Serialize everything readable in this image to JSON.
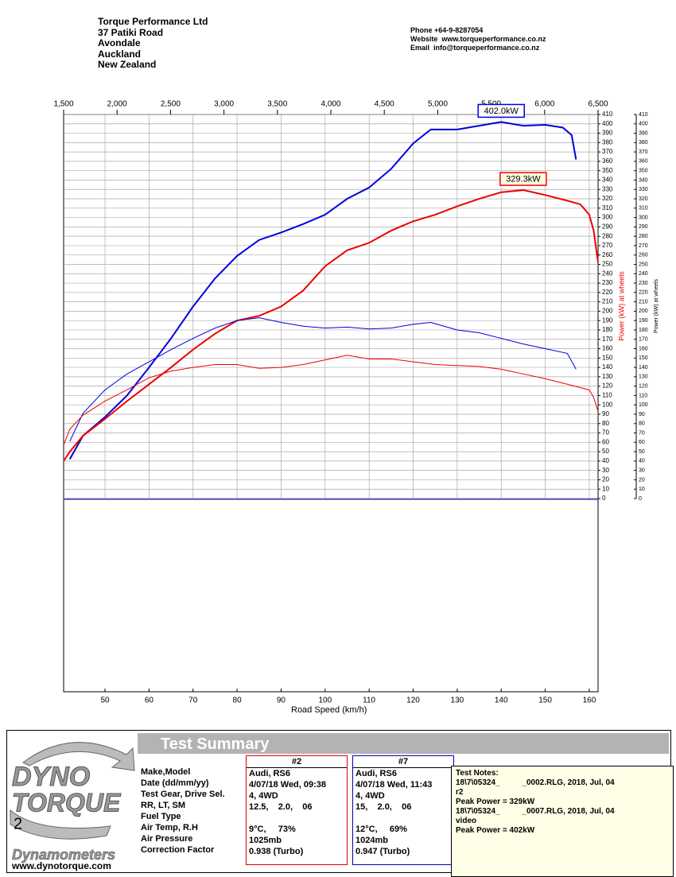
{
  "header": {
    "address": [
      "Torque Performance Ltd",
      "37 Patiki Road",
      "Avondale",
      "Auckland",
      "New Zealand"
    ],
    "contact": [
      "Phone +64-9-8287054",
      "Website  www.torqueperformance.co.nz",
      "Email  info@torqueperformance.co.nz"
    ]
  },
  "chart_data": {
    "type": "line",
    "xlabel": "Road Speed (km/h)",
    "ylabel": "Power (kW) at wheels",
    "y2label": "Power (kW) at wheels",
    "xlim": [
      40.6,
      162
    ],
    "xticks": [
      50,
      60,
      70,
      80,
      90,
      100,
      110,
      120,
      130,
      140,
      150,
      160
    ],
    "x2lim": [
      1500,
      6500
    ],
    "x2ticks": [
      {
        "value": 1500,
        "label": "1,500"
      },
      {
        "value": 2000,
        "label": "2,000"
      },
      {
        "value": 2500,
        "label": "2,500"
      },
      {
        "value": 3000,
        "label": "3,000"
      },
      {
        "value": 3500,
        "label": "3,500"
      },
      {
        "value": 4000,
        "label": "4,000"
      },
      {
        "value": 4500,
        "label": "4,500"
      },
      {
        "value": 5000,
        "label": "5,000"
      },
      {
        "value": 5500,
        "label": "5,500"
      },
      {
        "value": 6000,
        "label": "6,000"
      },
      {
        "value": 6500,
        "label": "6,500"
      }
    ],
    "ylim": [
      0,
      410
    ],
    "yticks": [
      0,
      10,
      20,
      30,
      40,
      50,
      60,
      70,
      80,
      90,
      100,
      110,
      120,
      130,
      140,
      150,
      160,
      170,
      180,
      190,
      200,
      210,
      220,
      230,
      240,
      250,
      260,
      270,
      280,
      290,
      300,
      310,
      320,
      330,
      340,
      350,
      360,
      370,
      380,
      390,
      400,
      410
    ],
    "y2lim": [
      0,
      410
    ],
    "y2ticks": [
      0,
      10,
      20,
      30,
      40,
      50,
      60,
      70,
      80,
      90,
      100,
      110,
      120,
      130,
      140,
      150,
      160,
      170,
      180,
      190,
      200,
      210,
      220,
      230,
      240,
      250,
      260,
      270,
      280,
      290,
      300,
      310,
      320,
      330,
      340,
      350,
      360,
      370,
      380,
      390,
      400,
      410
    ],
    "grid": true,
    "series": [
      {
        "color": "#0000dd",
        "width": 2,
        "peak_label": "402.0kW",
        "peak_fill": "#ffffff",
        "x": [
          42,
          45,
          50,
          55,
          60,
          65,
          70,
          75,
          80,
          85,
          90,
          95,
          100,
          105,
          110,
          115,
          120,
          124,
          130,
          135,
          140,
          145,
          150,
          154,
          156,
          157
        ],
        "values": [
          42,
          67,
          87,
          110,
          140,
          171,
          205,
          235,
          259,
          276,
          284,
          293,
          303,
          320,
          332,
          352,
          379,
          394,
          394,
          398,
          402,
          398,
          399,
          396,
          388,
          362
        ]
      },
      {
        "color": "#ee0000",
        "width": 2,
        "peak_label": "329.3kW",
        "peak_fill": "#ffffe0",
        "x": [
          40.6,
          42,
          45,
          50,
          55,
          60,
          65,
          70,
          75,
          80,
          85,
          90,
          95,
          100,
          105,
          110,
          115,
          120,
          125,
          130,
          135,
          140,
          145,
          150,
          155,
          158,
          160,
          161,
          162
        ],
        "values": [
          40,
          50,
          67,
          85,
          104,
          122,
          140,
          159,
          176,
          190,
          195,
          205,
          222,
          248,
          265,
          273,
          286,
          296,
          303,
          312,
          320,
          327,
          329.3,
          324,
          318,
          314,
          303,
          286,
          252
        ]
      },
      {
        "color": "#0000dd",
        "width": 1,
        "x": [
          42,
          45,
          50,
          55,
          60,
          65,
          70,
          75,
          80,
          85,
          90,
          95,
          100,
          105,
          110,
          115,
          120,
          124,
          130,
          135,
          140,
          145,
          150,
          155,
          157
        ],
        "values": [
          61,
          91,
          116,
          133,
          146,
          159,
          171,
          182,
          190,
          193,
          188,
          184,
          182,
          183,
          181,
          182,
          186,
          188,
          180,
          177,
          171,
          165,
          160,
          155,
          138
        ]
      },
      {
        "color": "#ee0000",
        "width": 1,
        "x": [
          40.6,
          42,
          45,
          50,
          55,
          60,
          65,
          70,
          75,
          80,
          85,
          90,
          95,
          100,
          105,
          110,
          115,
          120,
          125,
          130,
          135,
          140,
          145,
          150,
          155,
          160,
          161,
          162
        ],
        "values": [
          57,
          74,
          89,
          104,
          116,
          129,
          136,
          140,
          143,
          143,
          139,
          140,
          143,
          148,
          153,
          149,
          149,
          146,
          143,
          142,
          141,
          138,
          133,
          128,
          122,
          116,
          108,
          93
        ]
      }
    ]
  },
  "summary": {
    "title": "Test Summary",
    "logo": [
      "DYNO",
      "TORQUE",
      "2",
      "Dynamometers",
      "www.dynotorque.com"
    ],
    "labels": [
      "Make,Model",
      "Date (dd/mm/yy)",
      "Test Gear, Drive Sel.",
      "RR, LT, SM",
      "Fuel Type",
      "Air Temp, R.H",
      "Air Pressure",
      "Correction Factor"
    ],
    "runs": [
      {
        "name": "#2",
        "color": "#dd0000",
        "values": [
          "Audi, RS6",
          "4/07/18 Wed, 09:38",
          "4, 4WD",
          "12.5,    2.0,    06",
          null,
          "9°C,     73%",
          "1025mb",
          "0.938 (Turbo)"
        ]
      },
      {
        "name": "#7",
        "color": "#0000bb",
        "values": [
          "Audi, RS6",
          "4/07/18 Wed, 11:43",
          "4, 4WD",
          "15,    2.0,    06",
          null,
          "12°C,     69%",
          "1024mb",
          "0.947 (Turbo)"
        ]
      }
    ],
    "notes": [
      "Test Notes:",
      "18\\7\\05324_          _0002.RLG, 2018, Jul, 04",
      "r2",
      "Peak Power = 329kW",
      "18\\7\\05324_          _0007.RLG, 2018, Jul, 04",
      "video",
      "Peak Power = 402kW"
    ]
  }
}
